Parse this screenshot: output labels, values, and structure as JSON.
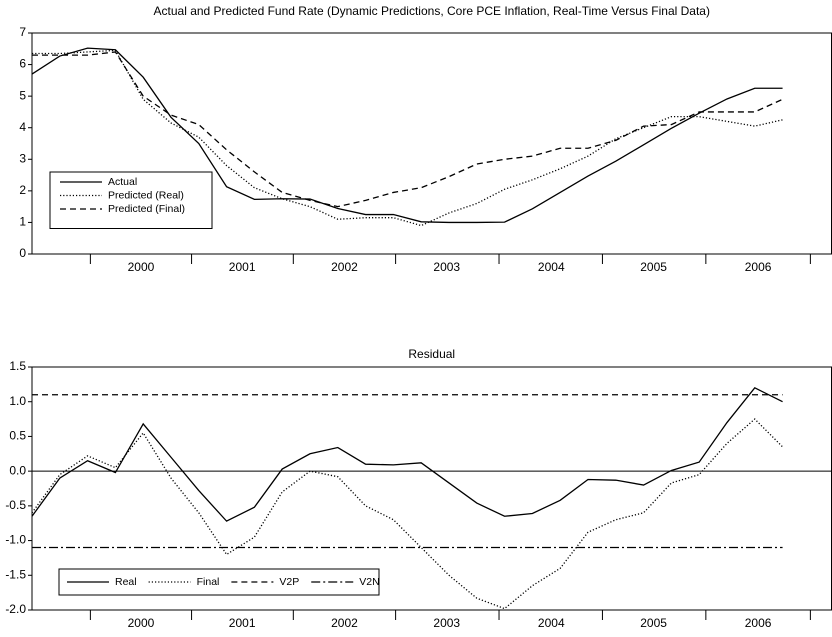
{
  "chart_data": [
    {
      "type": "line",
      "title": "Actual and Predicted Fund Rate (Dynamic Predictions, Core PCE Inflation, Real-Time Versus Final Data)",
      "x": [
        2000,
        2000.25,
        2000.5,
        2000.75,
        2001,
        2001.25,
        2001.5,
        2001.75,
        2002,
        2002.25,
        2002.5,
        2002.75,
        2003,
        2003.25,
        2003.5,
        2003.75,
        2004,
        2004.25,
        2004.5,
        2004.75,
        2005,
        2005.25,
        2005.5,
        2005.75,
        2006,
        2006.25,
        2006.5,
        2006.75
      ],
      "series": [
        {
          "name": "Actual",
          "color": "#000000",
          "dash": "solid",
          "values": [
            5.7,
            6.27,
            6.52,
            6.47,
            5.6,
            4.33,
            3.5,
            2.13,
            1.73,
            1.75,
            1.74,
            1.44,
            1.25,
            1.25,
            1.02,
            1.0,
            1.0,
            1.01,
            1.43,
            1.95,
            2.47,
            2.94,
            3.46,
            3.98,
            4.46,
            4.91,
            5.25,
            5.25
          ]
        },
        {
          "name": "Predicted (Real)",
          "color": "#000000",
          "dash": "dotted",
          "values": [
            6.35,
            6.35,
            6.4,
            6.45,
            4.9,
            4.15,
            3.7,
            2.8,
            2.1,
            1.75,
            1.5,
            1.1,
            1.15,
            1.15,
            0.9,
            1.3,
            1.6,
            2.05,
            2.35,
            2.7,
            3.1,
            3.65,
            4.0,
            4.35,
            4.35,
            4.2,
            4.05,
            4.25
          ]
        },
        {
          "name": "Predicted (Final)",
          "color": "#000000",
          "dash": "dashed",
          "values": [
            6.3,
            6.3,
            6.3,
            6.4,
            5.0,
            4.4,
            4.1,
            3.3,
            2.6,
            1.95,
            1.7,
            1.5,
            1.7,
            1.95,
            2.1,
            2.45,
            2.85,
            3.0,
            3.1,
            3.35,
            3.35,
            3.6,
            4.05,
            4.1,
            4.5,
            4.5,
            4.5,
            4.9
          ]
        }
      ],
      "xlim": [
        2000,
        2007.19
      ],
      "xticks": [
        {
          "value": 2000.98,
          "label": "2000"
        },
        {
          "value": 2001.89,
          "label": "2001"
        },
        {
          "value": 2002.81,
          "label": "2002"
        },
        {
          "value": 2003.73,
          "label": "2003"
        },
        {
          "value": 2004.67,
          "label": "2004"
        },
        {
          "value": 2005.59,
          "label": "2005"
        },
        {
          "value": 2006.53,
          "label": "2006"
        }
      ],
      "ylim": [
        0,
        7
      ],
      "yticks": [
        0,
        1,
        2,
        3,
        4,
        5,
        6,
        7
      ],
      "legend": "lower left",
      "legend_layout": "vertical"
    },
    {
      "type": "line",
      "title": "Residual",
      "x": [
        2000,
        2000.25,
        2000.5,
        2000.75,
        2001,
        2001.25,
        2001.5,
        2001.75,
        2002,
        2002.25,
        2002.5,
        2002.75,
        2003,
        2003.25,
        2003.5,
        2003.75,
        2004,
        2004.25,
        2004.5,
        2004.75,
        2005,
        2005.25,
        2005.5,
        2005.75,
        2006,
        2006.25,
        2006.5,
        2006.75
      ],
      "series": [
        {
          "name": "Real",
          "color": "#000000",
          "dash": "solid",
          "values": [
            -0.65,
            -0.1,
            0.15,
            -0.02,
            0.68,
            0.2,
            -0.28,
            -0.72,
            -0.52,
            0.03,
            0.25,
            0.34,
            0.1,
            0.09,
            0.12,
            -0.17,
            -0.46,
            -0.65,
            -0.61,
            -0.42,
            -0.12,
            -0.13,
            -0.2,
            0.01,
            0.13,
            0.7,
            1.2,
            1.0
          ]
        },
        {
          "name": "Final",
          "color": "#000000",
          "dash": "dotted",
          "values": [
            -0.6,
            -0.05,
            0.22,
            0.05,
            0.55,
            -0.1,
            -0.6,
            -1.2,
            -0.95,
            -0.3,
            0.0,
            -0.08,
            -0.5,
            -0.7,
            -1.1,
            -1.5,
            -1.83,
            -1.98,
            -1.65,
            -1.4,
            -0.88,
            -0.7,
            -0.6,
            -0.17,
            -0.05,
            0.4,
            0.75,
            0.35
          ]
        },
        {
          "name": "V2P",
          "color": "#000000",
          "dash": "dashed",
          "values": [
            1.1,
            1.1,
            1.1,
            1.1,
            1.1,
            1.1,
            1.1,
            1.1,
            1.1,
            1.1,
            1.1,
            1.1,
            1.1,
            1.1,
            1.1,
            1.1,
            1.1,
            1.1,
            1.1,
            1.1,
            1.1,
            1.1,
            1.1,
            1.1,
            1.1,
            1.1,
            1.1,
            1.1
          ]
        },
        {
          "name": "V2N",
          "color": "#000000",
          "dash": "dashdot",
          "values": [
            -1.1,
            -1.1,
            -1.1,
            -1.1,
            -1.1,
            -1.1,
            -1.1,
            -1.1,
            -1.1,
            -1.1,
            -1.1,
            -1.1,
            -1.1,
            -1.1,
            -1.1,
            -1.1,
            -1.1,
            -1.1,
            -1.1,
            -1.1,
            -1.1,
            -1.1,
            -1.1,
            -1.1,
            -1.1,
            -1.1,
            -1.1,
            -1.1
          ]
        }
      ],
      "xlim": [
        2000,
        2007.19
      ],
      "xticks": [
        {
          "value": 2000.98,
          "label": "2000"
        },
        {
          "value": 2001.89,
          "label": "2001"
        },
        {
          "value": 2002.81,
          "label": "2002"
        },
        {
          "value": 2003.73,
          "label": "2003"
        },
        {
          "value": 2004.67,
          "label": "2004"
        },
        {
          "value": 2005.59,
          "label": "2005"
        },
        {
          "value": 2006.53,
          "label": "2006"
        }
      ],
      "ylim": [
        -2.0,
        1.5
      ],
      "yticks": [
        {
          "value": -2.0,
          "label": "-2.0"
        },
        -1.5,
        {
          "value": -1.0,
          "label": "-1.0"
        },
        -0.5,
        {
          "value": 0.0,
          "label": "0.0"
        },
        0.5,
        {
          "value": 1.0,
          "label": "1.0"
        },
        1.5
      ],
      "zero_line": true,
      "legend": "lower left",
      "legend_layout": "horizontal"
    }
  ]
}
